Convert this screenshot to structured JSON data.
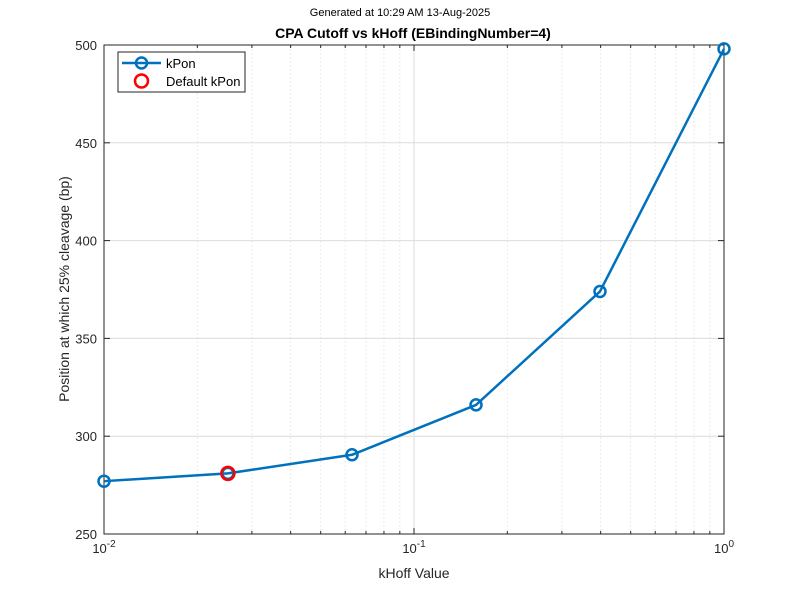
{
  "caption": "Generated at 10:29 AM 13-Aug-2025",
  "chart_data": {
    "type": "line",
    "title": "CPA Cutoff vs kHoff (EBindingNumber=4)",
    "xlabel": "kHoff Value",
    "ylabel": "Position at which 25% cleavage (bp)",
    "xscale": "log",
    "xlim": [
      0.01,
      1
    ],
    "ylim": [
      250,
      500
    ],
    "yticks": [
      250,
      300,
      350,
      400,
      450,
      500
    ],
    "xticks": [
      {
        "value": 0.01,
        "base": "10",
        "exp": "-2"
      },
      {
        "value": 0.1,
        "base": "10",
        "exp": "-1"
      },
      {
        "value": 1,
        "base": "10",
        "exp": "0"
      }
    ],
    "grid": true,
    "legend_position": "top-left",
    "series": [
      {
        "name": "kPon",
        "color": "#0072BD",
        "marker": "circle",
        "x": [
          0.01,
          0.0251,
          0.0631,
          0.1585,
          0.3981,
          1.0
        ],
        "y": [
          277,
          281,
          290.5,
          316,
          374,
          498
        ]
      },
      {
        "name": "Default kPon",
        "color": "#FF0000",
        "marker": "circle",
        "line": false,
        "x": [
          0.0251
        ],
        "y": [
          281
        ]
      }
    ]
  }
}
